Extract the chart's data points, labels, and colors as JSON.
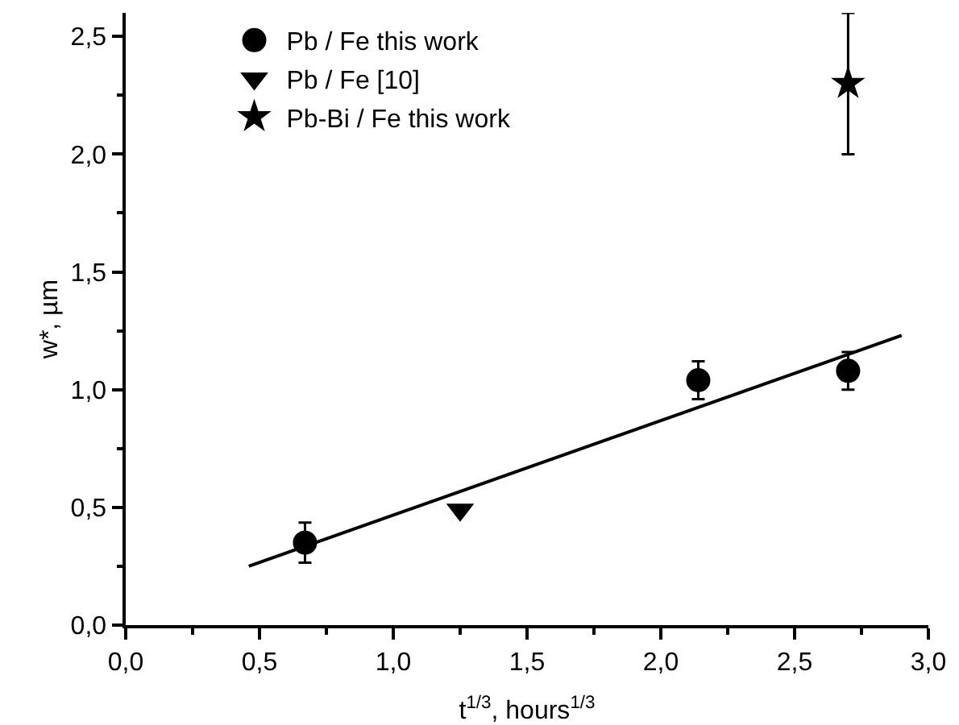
{
  "chart_data": {
    "type": "scatter",
    "xlabel": "t$^{1/3}$, hours$^{1/3}$",
    "ylabel": "w*, µm",
    "xlim": [
      0,
      3
    ],
    "xticks": [
      {
        "value": 0,
        "label": "0,0"
      },
      {
        "value": 0.5,
        "label": "0,5"
      },
      {
        "value": 1,
        "label": "1,0"
      },
      {
        "value": 1.5,
        "label": "1,5"
      },
      {
        "value": 2,
        "label": "2,0"
      },
      {
        "value": 2.5,
        "label": "2,5"
      },
      {
        "value": 3,
        "label": "3,0"
      }
    ],
    "ylim": [
      0,
      2.6
    ],
    "yticks": [
      {
        "value": 0,
        "label": "0,0"
      },
      {
        "value": 0.5,
        "label": "0,5"
      },
      {
        "value": 1,
        "label": "1,0"
      },
      {
        "value": 1.5,
        "label": "1,5"
      },
      {
        "value": 2,
        "label": "2,0"
      },
      {
        "value": 2.5,
        "label": "2,5"
      }
    ],
    "grid": false,
    "legend": "top",
    "series": [
      {
        "name": "Pb / Fe this work",
        "color": "#000000",
        "marker": "circle",
        "x": [
          0.67,
          2.14,
          2.7
        ],
        "values": [
          0.35,
          1.04,
          1.08
        ],
        "errors": [
          0.085,
          0.08,
          0.08
        ]
      },
      {
        "name": "Pb / Fe [10]",
        "color": "#000000",
        "marker": "triangle",
        "x": [
          1.25
        ],
        "values": [
          0.49
        ]
      },
      {
        "name": "Pb-Bi / Fe this work",
        "color": "#000000",
        "marker": "star",
        "x": [
          2.7
        ],
        "values": [
          2.3
        ],
        "errors": [
          0.3
        ]
      },
      {
        "type": "line",
        "color": "#000000",
        "marker": "none",
        "line_style": "solid",
        "x": [
          0.46,
          2.9
        ],
        "values": [
          0.25,
          1.23
        ]
      }
    ]
  }
}
